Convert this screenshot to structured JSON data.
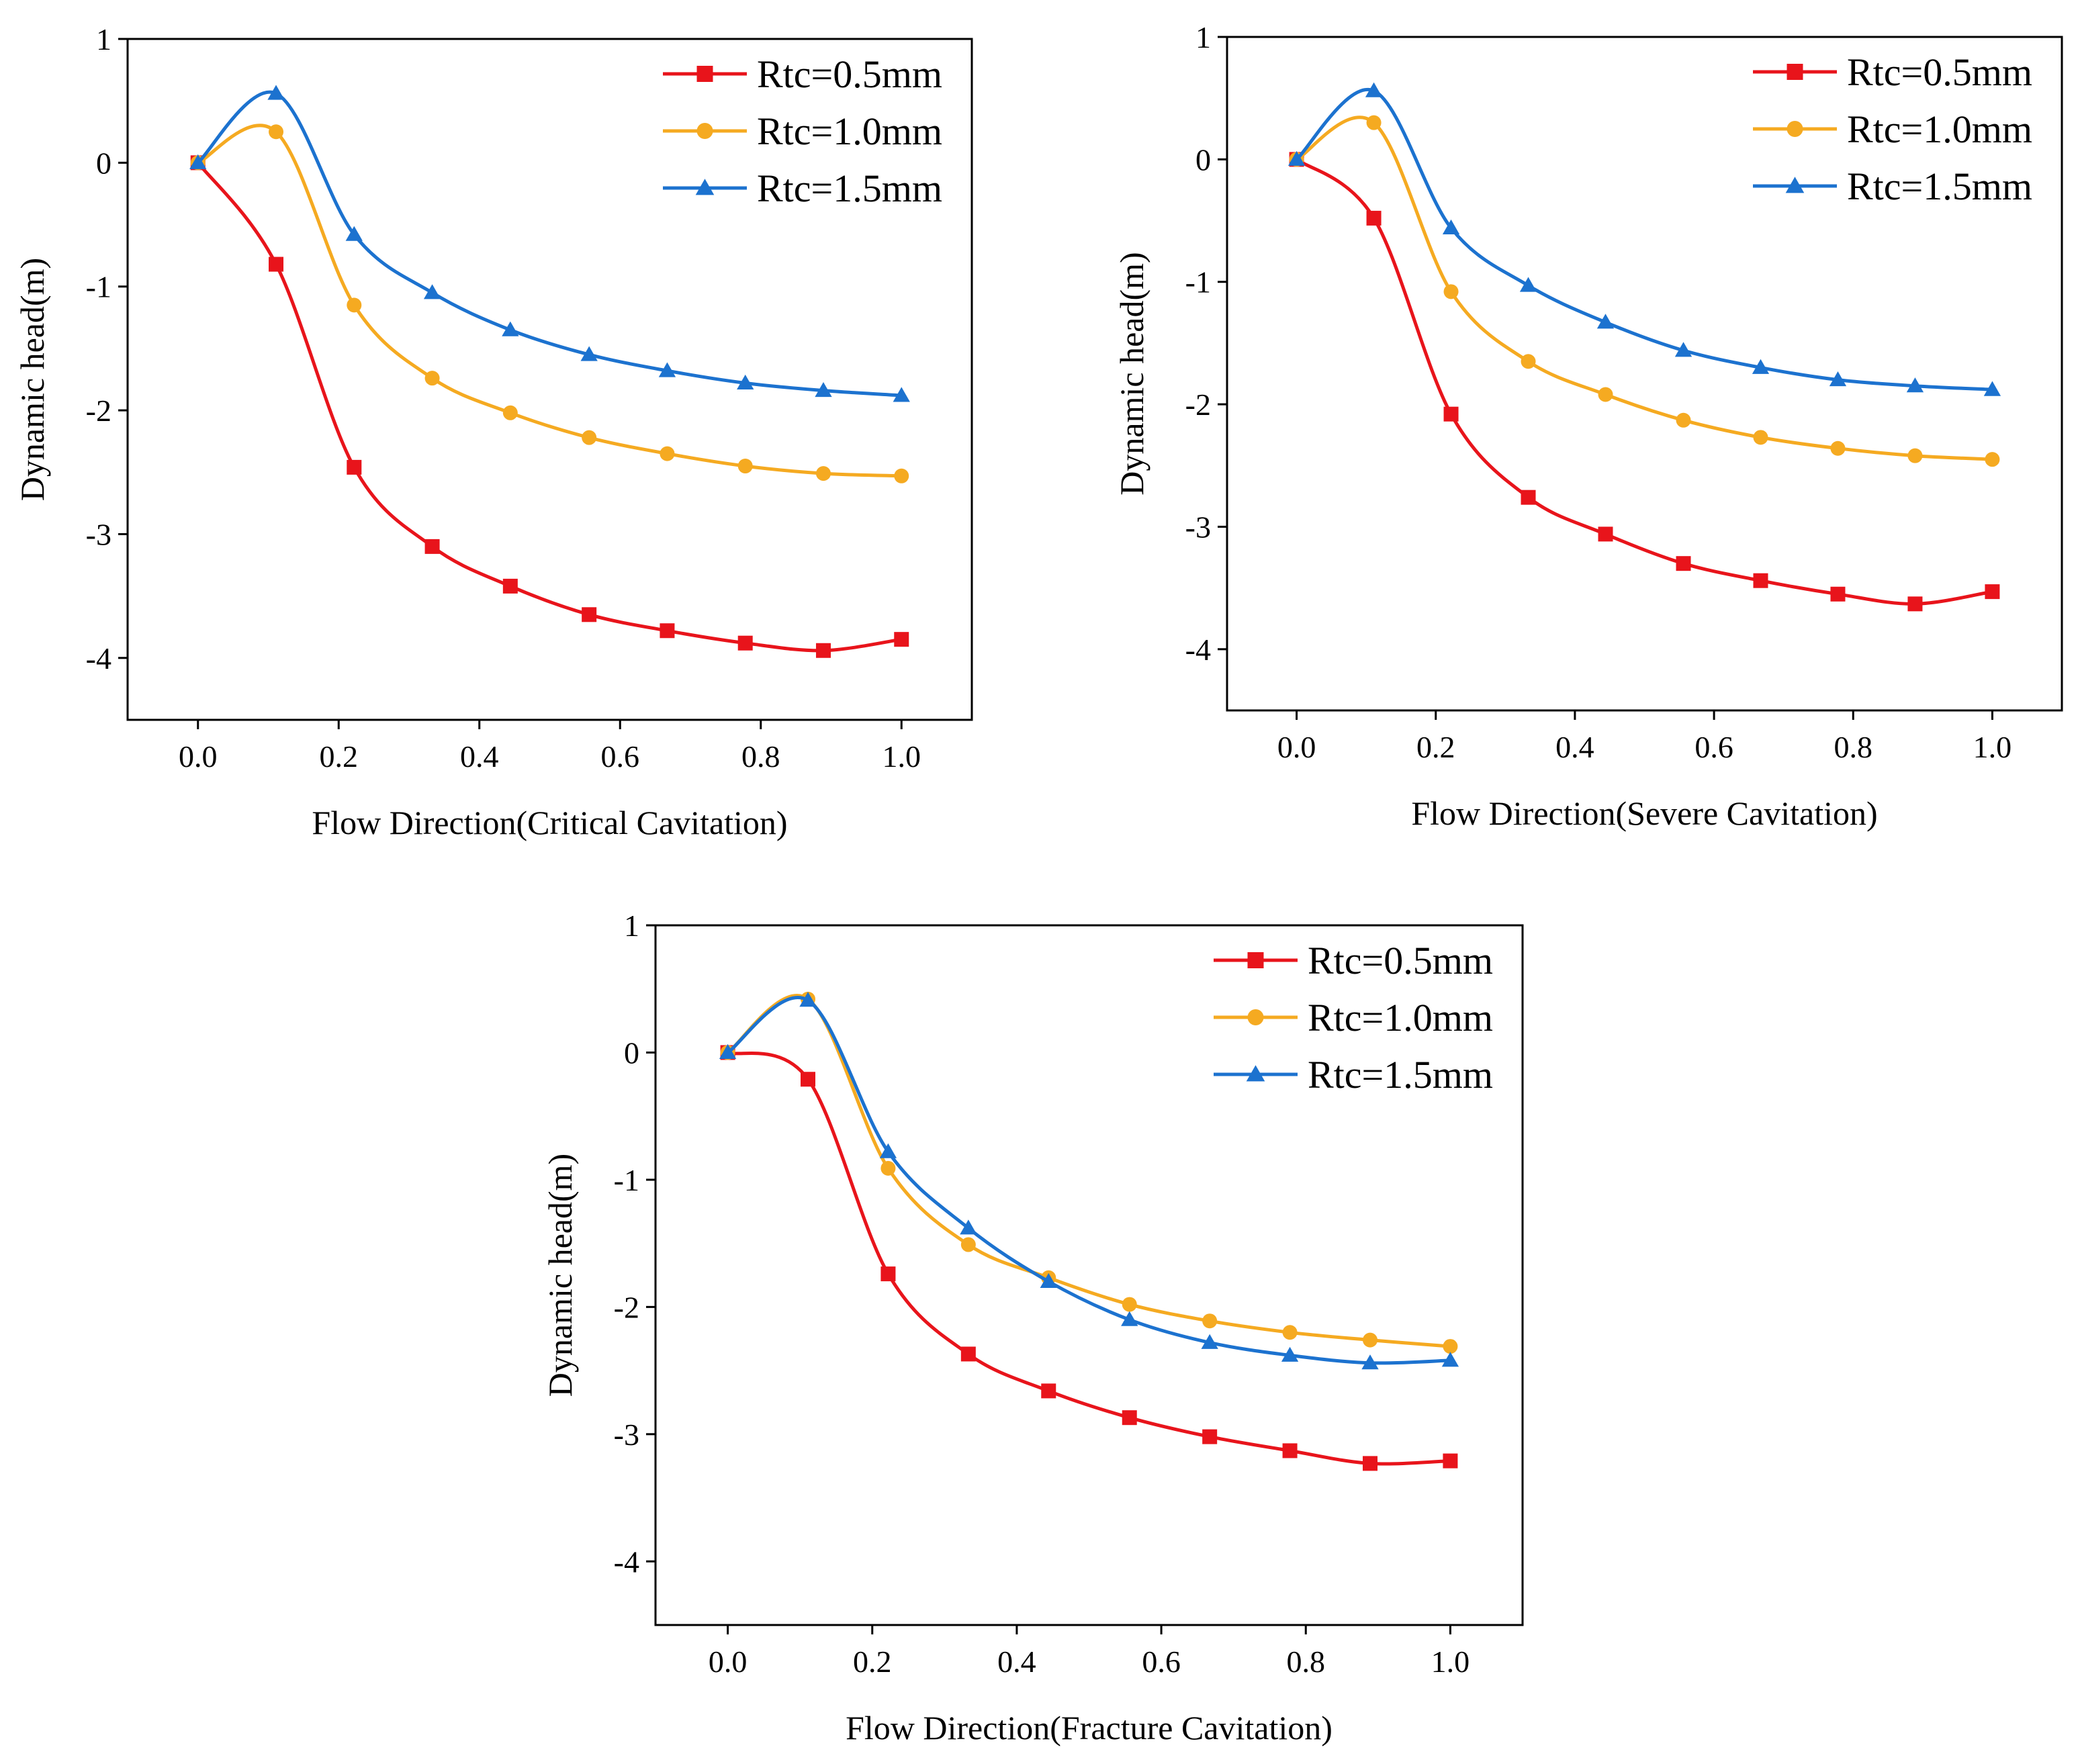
{
  "colors": {
    "rtc_0_5": "#e8141b",
    "rtc_1_0": "#f5aa21",
    "rtc_1_5": "#1c72cf",
    "axes": "#000000",
    "background": "#ffffff"
  },
  "chart_data": [
    {
      "type": "line",
      "title": "",
      "xlabel": "Flow Direction(Critical Cavitation)",
      "ylabel": "Dynamic head(m)",
      "xlim": [
        -0.1,
        1.1
      ],
      "ylim": [
        -4.5,
        1
      ],
      "xticks": [
        "0.0",
        "0.2",
        "0.4",
        "0.6",
        "0.8",
        "1.0"
      ],
      "yticks": [
        "1",
        "0",
        "-1",
        "-2",
        "-3",
        "-4"
      ],
      "legend_position": "top-right",
      "x": [
        0,
        0.111,
        0.222,
        0.333,
        0.444,
        0.556,
        0.667,
        0.778,
        0.889,
        1.0
      ],
      "series": [
        {
          "name": "Rtc=0.5mm",
          "marker": "square",
          "color": "#e8141b",
          "values": [
            0,
            -0.82,
            -2.46,
            -3.1,
            -3.42,
            -3.65,
            -3.78,
            -3.88,
            -3.94,
            -3.85
          ]
        },
        {
          "name": "Rtc=1.0mm",
          "marker": "circle",
          "color": "#f5aa21",
          "values": [
            0,
            0.25,
            -1.15,
            -1.74,
            -2.02,
            -2.22,
            -2.35,
            -2.45,
            -2.51,
            -2.53
          ]
        },
        {
          "name": "Rtc=1.5mm",
          "marker": "triangle",
          "color": "#1c72cf",
          "values": [
            0,
            0.56,
            -0.58,
            -1.05,
            -1.35,
            -1.55,
            -1.68,
            -1.78,
            -1.84,
            -1.88
          ]
        }
      ]
    },
    {
      "type": "line",
      "title": "",
      "xlabel": "Flow Direction(Severe Cavitation)",
      "ylabel": "Dynamic head(m)",
      "xlim": [
        -0.1,
        1.1
      ],
      "ylim": [
        -4.5,
        1
      ],
      "xticks": [
        "0.0",
        "0.2",
        "0.4",
        "0.6",
        "0.8",
        "1.0"
      ],
      "yticks": [
        "1",
        "0",
        "-1",
        "-2",
        "-3",
        "-4"
      ],
      "legend_position": "top-right",
      "x": [
        0,
        0.111,
        0.222,
        0.333,
        0.444,
        0.556,
        0.667,
        0.778,
        0.889,
        1.0
      ],
      "series": [
        {
          "name": "Rtc=0.5mm",
          "marker": "square",
          "color": "#e8141b",
          "values": [
            0,
            -0.48,
            -2.08,
            -2.76,
            -3.06,
            -3.3,
            -3.44,
            -3.55,
            -3.63,
            -3.53
          ]
        },
        {
          "name": "Rtc=1.0mm",
          "marker": "circle",
          "color": "#f5aa21",
          "values": [
            0,
            0.3,
            -1.08,
            -1.65,
            -1.92,
            -2.13,
            -2.27,
            -2.36,
            -2.42,
            -2.45
          ]
        },
        {
          "name": "Rtc=1.5mm",
          "marker": "triangle",
          "color": "#1c72cf",
          "values": [
            0,
            0.56,
            -0.56,
            -1.03,
            -1.33,
            -1.56,
            -1.7,
            -1.8,
            -1.85,
            -1.88
          ]
        }
      ]
    },
    {
      "type": "line",
      "title": "",
      "xlabel": "Flow Direction(Fracture Cavitation)",
      "ylabel": "Dynamic head(m)",
      "xlim": [
        -0.1,
        1.1
      ],
      "ylim": [
        -4.5,
        1
      ],
      "xticks": [
        "0.0",
        "0.2",
        "0.4",
        "0.6",
        "0.8",
        "1.0"
      ],
      "yticks": [
        "1",
        "0",
        "-1",
        "-2",
        "-3",
        "-4"
      ],
      "legend_position": "top-right",
      "x": [
        0,
        0.111,
        0.222,
        0.333,
        0.444,
        0.556,
        0.667,
        0.778,
        0.889,
        1.0
      ],
      "series": [
        {
          "name": "Rtc=0.5mm",
          "marker": "square",
          "color": "#e8141b",
          "values": [
            0,
            -0.21,
            -1.74,
            -2.37,
            -2.66,
            -2.87,
            -3.02,
            -3.13,
            -3.23,
            -3.21
          ]
        },
        {
          "name": "Rtc=1.0mm",
          "marker": "circle",
          "color": "#f5aa21",
          "values": [
            0,
            0.42,
            -0.91,
            -1.51,
            -1.77,
            -1.98,
            -2.11,
            -2.2,
            -2.26,
            -2.31
          ]
        },
        {
          "name": "Rtc=1.5mm",
          "marker": "triangle",
          "color": "#1c72cf",
          "values": [
            0,
            0.41,
            -0.78,
            -1.38,
            -1.8,
            -2.1,
            -2.28,
            -2.38,
            -2.44,
            -2.42
          ]
        }
      ]
    }
  ]
}
